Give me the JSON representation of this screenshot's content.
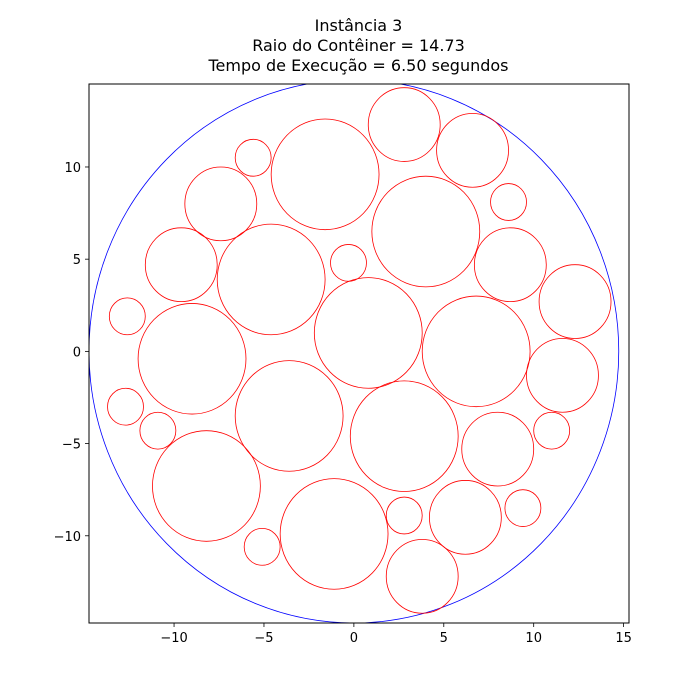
{
  "chart_data": {
    "type": "scatter",
    "title_lines": [
      "Instância 3",
      "Raio do Contêiner = 14.73",
      "Tempo de Execução = 6.50 segundos"
    ],
    "xlabel": "",
    "ylabel": "",
    "xlim": [
      -14.73,
      15.3
    ],
    "ylim": [
      -14.73,
      14.5
    ],
    "xticks": [
      -10,
      -5,
      0,
      5,
      10,
      15
    ],
    "yticks": [
      -10,
      -5,
      0,
      5,
      10
    ],
    "xtick_labels": [
      "−10",
      "−5",
      "0",
      "5",
      "10",
      "15"
    ],
    "ytick_labels": [
      "−10",
      "−5",
      "0",
      "5",
      "10"
    ],
    "grid": false,
    "container": {
      "x": 0.0,
      "y": 0.0,
      "r": 14.73,
      "color": "#0000ff"
    },
    "circle_color": "#ff0000",
    "circles": [
      {
        "x": 2.8,
        "y": 12.3,
        "r": 2.0
      },
      {
        "x": 6.6,
        "y": 10.9,
        "r": 2.0
      },
      {
        "x": -5.6,
        "y": 10.5,
        "r": 1.0
      },
      {
        "x": -1.6,
        "y": 9.6,
        "r": 3.0
      },
      {
        "x": 8.6,
        "y": 8.1,
        "r": 1.0
      },
      {
        "x": -7.4,
        "y": 8.0,
        "r": 2.0
      },
      {
        "x": 4.0,
        "y": 6.5,
        "r": 3.0
      },
      {
        "x": -9.6,
        "y": 4.7,
        "r": 2.0
      },
      {
        "x": -0.3,
        "y": 4.8,
        "r": 1.0
      },
      {
        "x": -4.6,
        "y": 3.9,
        "r": 3.0
      },
      {
        "x": 8.7,
        "y": 4.7,
        "r": 2.0
      },
      {
        "x": 12.3,
        "y": 2.7,
        "r": 2.0
      },
      {
        "x": -12.6,
        "y": 1.9,
        "r": 1.0
      },
      {
        "x": 0.8,
        "y": 1.0,
        "r": 3.0
      },
      {
        "x": 6.8,
        "y": 0.0,
        "r": 3.0
      },
      {
        "x": -9.0,
        "y": -0.4,
        "r": 3.0
      },
      {
        "x": 11.6,
        "y": -1.3,
        "r": 2.0
      },
      {
        "x": -12.7,
        "y": -3.0,
        "r": 1.0
      },
      {
        "x": -3.6,
        "y": -3.5,
        "r": 3.0
      },
      {
        "x": 2.8,
        "y": -4.6,
        "r": 3.0
      },
      {
        "x": 11.0,
        "y": -4.3,
        "r": 1.0
      },
      {
        "x": -10.9,
        "y": -4.3,
        "r": 1.0
      },
      {
        "x": 8.0,
        "y": -5.3,
        "r": 2.0
      },
      {
        "x": -8.2,
        "y": -7.3,
        "r": 3.0
      },
      {
        "x": 9.4,
        "y": -8.5,
        "r": 1.0
      },
      {
        "x": 6.2,
        "y": -9.0,
        "r": 2.0
      },
      {
        "x": 2.8,
        "y": -8.9,
        "r": 1.0
      },
      {
        "x": -1.1,
        "y": -9.9,
        "r": 3.0
      },
      {
        "x": -5.1,
        "y": -10.6,
        "r": 1.0
      },
      {
        "x": 3.8,
        "y": -12.2,
        "r": 2.0
      }
    ]
  }
}
